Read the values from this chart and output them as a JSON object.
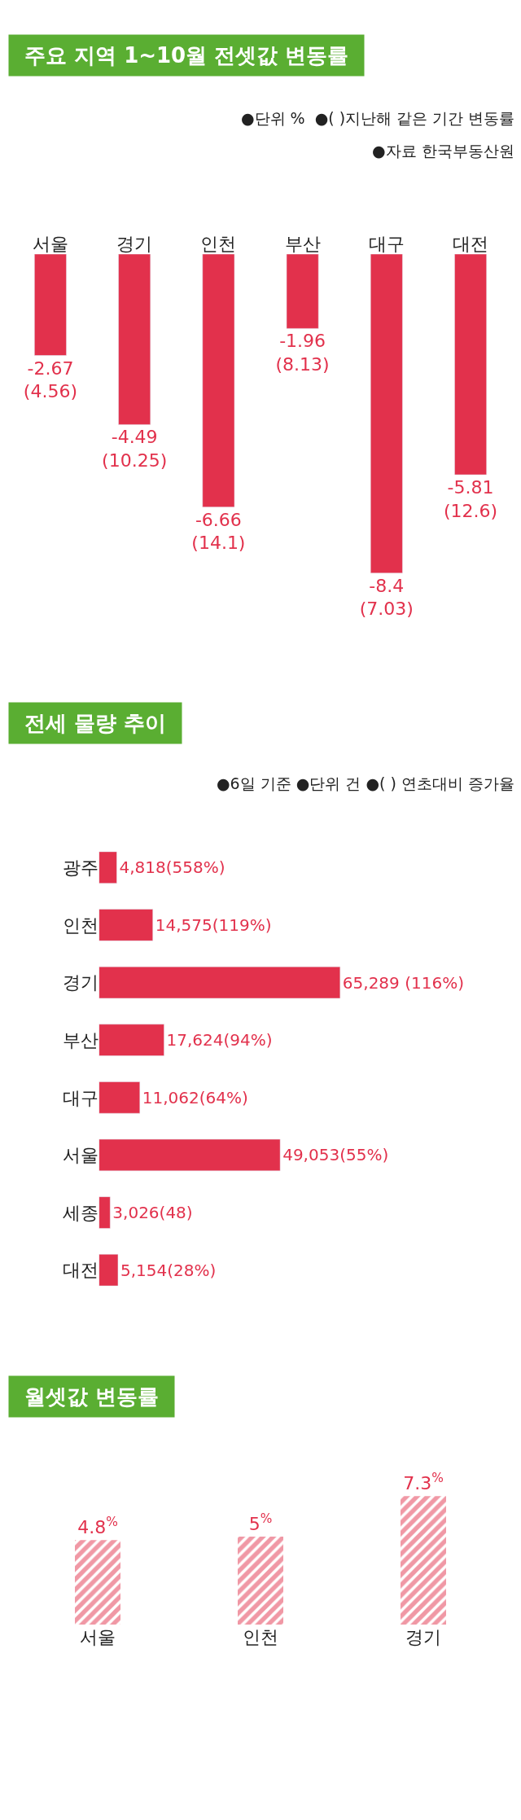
{
  "chart_data": [
    {
      "type": "bar",
      "title": "주요 지역 1~10월 전셋값 변동률",
      "annotations": [
        "●단위 %  ●( )지난해 같은 기간 변동률",
        "●자료 한국부동산원"
      ],
      "categories": [
        "서울",
        "경기",
        "인천",
        "부산",
        "대구",
        "대전"
      ],
      "values": [
        -2.67,
        -4.49,
        -6.66,
        -1.96,
        -8.4,
        -5.81
      ],
      "color": "#e2314c",
      "value_labels": [
        "-2.67\n(4.56)",
        "-4.49\n(10.25)",
        "-6.66\n(14.1)",
        "-1.96\n(8.13)",
        "-8.4\n(7.03)",
        "-5.81\n(12.6)"
      ]
    },
    {
      "type": "bar",
      "orientation": "horizontal",
      "title": "전세 물량 추이",
      "annotations": [
        "●6일 기준 ●단위 건 ●( ) 연초대비 증가율"
      ],
      "categories": [
        "광주",
        "인천",
        "경기",
        "부산",
        "대구",
        "서울",
        "세종",
        "대전"
      ],
      "values": [
        4818,
        14575,
        65289,
        17624,
        11062,
        49053,
        3026,
        5154
      ],
      "color": "#e2314c",
      "value_labels": [
        "4,818(558%)",
        "14,575(119%)",
        "65,289 (116%)",
        "17,624(94%)",
        "11,062(64%)",
        "49,053(55%)",
        "3,026(48)",
        "5,154(28%)"
      ]
    },
    {
      "type": "bar",
      "title": "월셋값 변동률",
      "categories": [
        "서울",
        "인천",
        "경기"
      ],
      "values": [
        4.8,
        5,
        7.3
      ],
      "color": "#e2314c",
      "value_labels": [
        "4.8$^{%}$",
        "5$^{%}$",
        "7.3$^{%}$"
      ]
    }
  ]
}
